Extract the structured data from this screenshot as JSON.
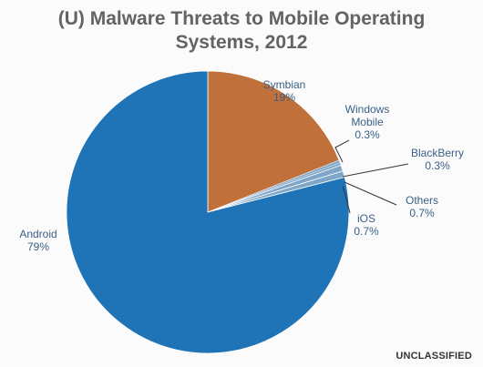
{
  "title_line1": "(U)  Malware Threats to Mobile Operating",
  "title_line2": "Systems, 2012",
  "footer": "UNCLASSIFIED",
  "colors": {
    "android": "#1f73b7",
    "symbian": "#c0703a",
    "minor": "#7fa6c8",
    "label": "#3a5f86",
    "title": "#636363"
  },
  "chart_data": {
    "type": "pie",
    "categories": [
      "Symbian",
      "Windows Mobile",
      "BlackBerry",
      "Others",
      "iOS",
      "Android"
    ],
    "values": [
      19,
      0.3,
      0.3,
      0.7,
      0.7,
      79
    ],
    "value_labels": [
      "19%",
      "0.3%",
      "0.3%",
      "0.7%",
      "0.7%",
      "79%"
    ],
    "category_lines": [
      [
        "Symbian"
      ],
      [
        "Windows",
        "Mobile"
      ],
      [
        "BlackBerry"
      ],
      [
        "Others"
      ],
      [
        "iOS"
      ],
      [
        "Android"
      ]
    ],
    "unit": "%"
  }
}
